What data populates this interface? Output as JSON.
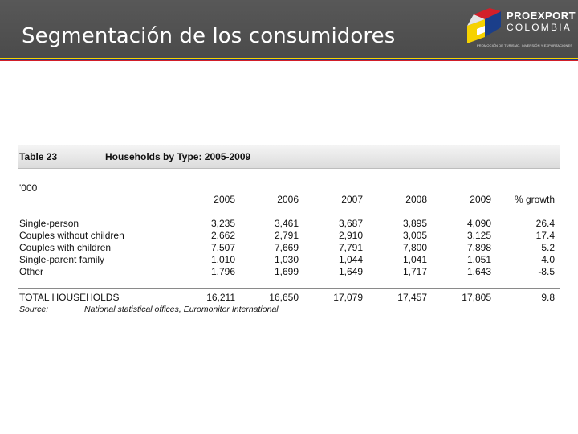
{
  "slide": {
    "title": "Segmentación de los consumidores"
  },
  "logo": {
    "word1": "PROEXPORT",
    "word2": "COLOMBIA",
    "tagline": "PROMOCIÓN DE TURISMO, INVERSIÓN Y EXPORTACIONES",
    "colors": {
      "yellow": "#f6d200",
      "blue": "#1a3e8a",
      "red": "#d21f2a"
    }
  },
  "table": {
    "number": "Table 23",
    "caption": "Households by Type: 2005-2009",
    "unit": "'000",
    "columns": [
      "2005",
      "2006",
      "2007",
      "2008",
      "2009",
      "% growth"
    ],
    "rows": [
      {
        "label": "Single-person",
        "values": [
          "3,235",
          "3,461",
          "3,687",
          "3,895",
          "4,090",
          "26.4"
        ]
      },
      {
        "label": "Couples without children",
        "values": [
          "2,662",
          "2,791",
          "2,910",
          "3,005",
          "3,125",
          "17.4"
        ]
      },
      {
        "label": "Couples with children",
        "values": [
          "7,507",
          "7,669",
          "7,791",
          "7,800",
          "7,898",
          "5.2"
        ]
      },
      {
        "label": "Single-parent family",
        "values": [
          "1,010",
          "1,030",
          "1,044",
          "1,041",
          "1,051",
          "4.0"
        ]
      },
      {
        "label": "Other",
        "values": [
          "1,796",
          "1,699",
          "1,649",
          "1,717",
          "1,643",
          "-8.5"
        ]
      }
    ],
    "total": {
      "label": "TOTAL HOUSEHOLDS",
      "values": [
        "16,211",
        "16,650",
        "17,079",
        "17,457",
        "17,805",
        "9.8"
      ]
    },
    "source": {
      "label": "Source:",
      "text": "National statistical offices, Euromonitor International"
    }
  }
}
